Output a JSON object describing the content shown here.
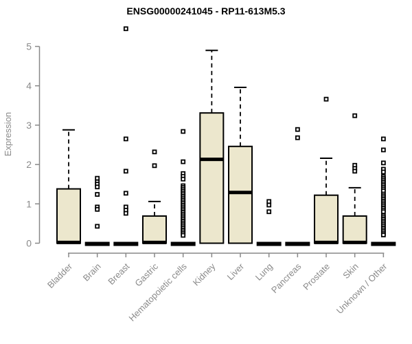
{
  "chart_data": {
    "type": "boxplot",
    "title": "ENSG00000241045 - RP11-613M5.3",
    "ylabel": "Expression",
    "xlabel": "",
    "ylim": [
      0,
      5
    ],
    "yticks": [
      0,
      1,
      2,
      3,
      4,
      5
    ],
    "grid": false,
    "legend": "none",
    "categories": [
      "Bladder",
      "Brain",
      "Breast",
      "Gastric",
      "Hematopoietic cells",
      "Kidney",
      "Liver",
      "Lung",
      "Pancreas",
      "Prostate",
      "Skin",
      "Unknown / Other"
    ],
    "groups": [
      {
        "name": "Bladder",
        "whisker_low": 0,
        "q1": 0,
        "median": 0.02,
        "q3": 1.38,
        "whisker_high": 2.88,
        "outliers": []
      },
      {
        "name": "Brain",
        "whisker_low": 0,
        "q1": 0,
        "median": 0,
        "q3": 0,
        "whisker_high": 0,
        "outliers": [
          1.65,
          1.56,
          1.5,
          1.43,
          1.24,
          0.92,
          0.86,
          0.43
        ]
      },
      {
        "name": "Breast",
        "whisker_low": 0,
        "q1": 0,
        "median": 0,
        "q3": 0,
        "whisker_high": 0,
        "outliers": [
          5.45,
          2.65,
          1.83,
          1.27,
          0.92,
          0.84,
          0.76
        ]
      },
      {
        "name": "Gastric",
        "whisker_low": 0,
        "q1": 0,
        "median": 0.02,
        "q3": 0.69,
        "whisker_high": 1.06,
        "outliers": [
          2.32,
          1.97
        ]
      },
      {
        "name": "Hematopoietic cells",
        "whisker_low": 0,
        "q1": 0,
        "median": 0,
        "q3": 0,
        "whisker_high": 0,
        "outliers": [
          2.84,
          2.07,
          1.77,
          1.7,
          1.63,
          1.46,
          1.415,
          1.37,
          1.325,
          1.28,
          1.235,
          1.19,
          1.145,
          1.1,
          1.055,
          1.01,
          0.965,
          0.92,
          0.875,
          0.83,
          0.785,
          0.74,
          0.695,
          0.65,
          0.605,
          0.56,
          0.515,
          0.47,
          0.425,
          0.38,
          0.335,
          0.29,
          0.245,
          0.2
        ]
      },
      {
        "name": "Kidney",
        "whisker_low": 0,
        "q1": 0,
        "median": 2.13,
        "q3": 3.31,
        "whisker_high": 4.9,
        "outliers": []
      },
      {
        "name": "Liver",
        "whisker_low": 0,
        "q1": 0,
        "median": 1.29,
        "q3": 2.46,
        "whisker_high": 3.96,
        "outliers": []
      },
      {
        "name": "Lung",
        "whisker_low": 0,
        "q1": 0,
        "median": 0,
        "q3": 0,
        "whisker_high": 0,
        "outliers": [
          1.06,
          0.97,
          0.8
        ]
      },
      {
        "name": "Pancreas",
        "whisker_low": 0,
        "q1": 0,
        "median": 0,
        "q3": 0,
        "whisker_high": 0,
        "outliers": [
          2.89,
          2.68
        ]
      },
      {
        "name": "Prostate",
        "whisker_low": 0,
        "q1": 0,
        "median": 0.02,
        "q3": 1.22,
        "whisker_high": 2.16,
        "outliers": [
          3.66
        ]
      },
      {
        "name": "Skin",
        "whisker_low": 0,
        "q1": 0,
        "median": 0.02,
        "q3": 0.69,
        "whisker_high": 1.41,
        "outliers": [
          3.24,
          1.98,
          1.9,
          1.83
        ]
      },
      {
        "name": "Unknown / Other",
        "whisker_low": 0,
        "q1": 0,
        "median": 0,
        "q3": 0,
        "whisker_high": 0,
        "outliers": [
          2.65,
          2.37,
          2.04,
          1.88,
          1.81,
          1.69,
          1.645,
          1.6,
          1.555,
          1.51,
          1.465,
          1.42,
          1.375,
          1.33,
          1.25,
          1.205,
          1.16,
          1.115,
          1.07,
          1.025,
          0.98,
          0.935,
          0.89,
          0.845,
          0.8,
          0.7,
          0.655,
          0.61,
          0.565,
          0.52,
          0.475,
          0.43,
          0.385,
          0.34,
          0.295,
          0.25,
          0.21
        ]
      }
    ]
  },
  "colors": {
    "box_fill": "#ECE7CD",
    "box_border": "#000000",
    "median": "#000000",
    "whisker": "#000000",
    "outlier_stroke": "#000000",
    "outlier_fill": "#ffffff",
    "axis": "#888888",
    "tick_label": "#8a8a8a",
    "title": "#000000",
    "background": "#ffffff"
  }
}
